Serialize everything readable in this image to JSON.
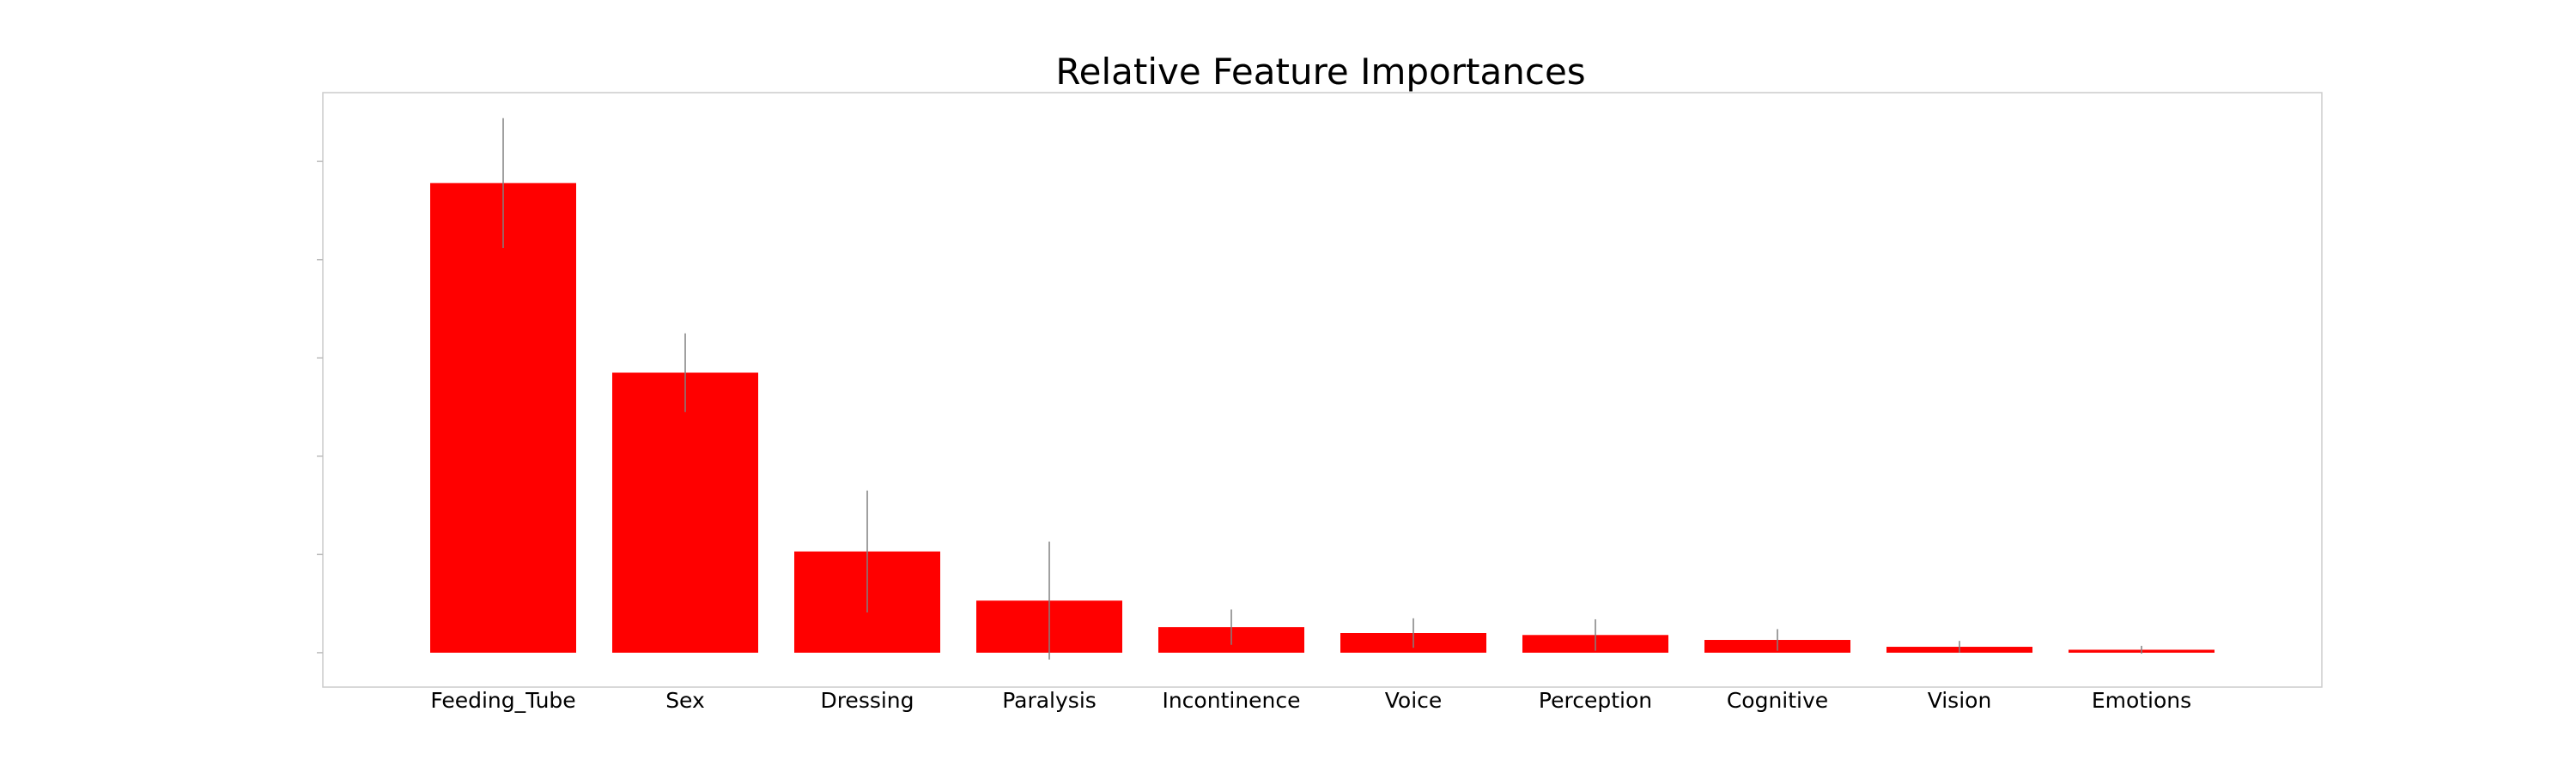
{
  "chart_data": {
    "type": "bar",
    "title": "Relative Feature Importances",
    "xlabel": "",
    "ylabel": "",
    "categories": [
      "Feeding_Tube",
      "Sex",
      "Dressing",
      "Paralysis",
      "Incontinence",
      "Voice",
      "Perception",
      "Cognitive",
      "Vision",
      "Emotions"
    ],
    "values": [
      0.478,
      0.285,
      0.103,
      0.053,
      0.026,
      0.02,
      0.018,
      0.013,
      0.006,
      0.003
    ],
    "errors": [
      0.066,
      0.04,
      0.062,
      0.06,
      0.018,
      0.015,
      0.016,
      0.011,
      0.006,
      0.004
    ],
    "ylim": [
      -0.035,
      0.57
    ],
    "yticks": [
      0.0,
      0.1,
      0.2,
      0.3,
      0.4,
      0.5
    ],
    "ytick_labels_visible": false,
    "grid": false,
    "legend": false,
    "colors": {
      "bar": "#ff0000",
      "error_bar": "#808080",
      "frame": "#cccccc",
      "tick": "#bbbbbb"
    }
  }
}
